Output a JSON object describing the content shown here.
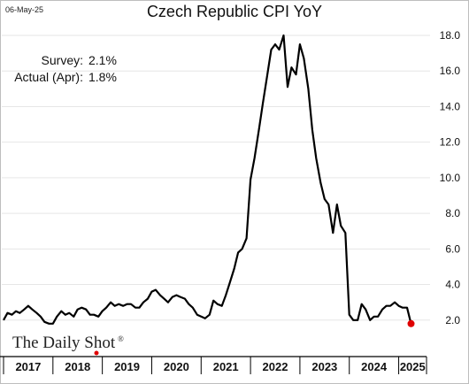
{
  "header": {
    "date": "06-May-25",
    "title": "Czech Republic CPI YoY"
  },
  "annotations": [
    {
      "label": "Survey:",
      "value": "2.1%"
    },
    {
      "label": "Actual (Apr):",
      "value": "1.8%"
    }
  ],
  "logo": {
    "text": "The Daily Shot",
    "mark": "®"
  },
  "colors": {
    "line": "#000000",
    "highlight": "#e00000",
    "grid": "#e6e6e6",
    "axis": "#000000"
  },
  "chart_data": {
    "type": "line",
    "title": "Czech Republic CPI YoY",
    "ylim": [
      0,
      18
    ],
    "yticks": [
      {
        "value": 2,
        "label": "2.0"
      },
      {
        "value": 4,
        "label": "4.0"
      },
      {
        "value": 6,
        "label": "6.0"
      },
      {
        "value": 8,
        "label": "8.0"
      },
      {
        "value": 10,
        "label": "10.0"
      },
      {
        "value": 12,
        "label": "12.0"
      },
      {
        "value": 14,
        "label": "14.0"
      },
      {
        "value": 16,
        "label": "16.0"
      },
      {
        "value": 18,
        "label": "18.0"
      }
    ],
    "xlim": [
      2017.0,
      2025.42
    ],
    "xticks": [
      "2017",
      "2018",
      "2019",
      "2020",
      "2021",
      "2022",
      "2023",
      "2024",
      "2025"
    ],
    "grid": true,
    "series": [
      {
        "x": [
          2017.0,
          2017.08,
          2017.17,
          2017.25,
          2017.33,
          2017.42,
          2017.5,
          2017.58,
          2017.67,
          2017.75,
          2017.83,
          2017.92,
          2018.0,
          2018.08,
          2018.17,
          2018.25,
          2018.33,
          2018.42,
          2018.5,
          2018.58,
          2018.67,
          2018.75,
          2018.83,
          2018.92,
          2019.0,
          2019.08,
          2019.17,
          2019.25,
          2019.33,
          2019.42,
          2019.5,
          2019.58,
          2019.67,
          2019.75,
          2019.83,
          2019.92,
          2020.0,
          2020.08,
          2020.17,
          2020.25,
          2020.33,
          2020.42,
          2020.5,
          2020.58,
          2020.67,
          2020.75,
          2020.83,
          2020.92,
          2021.0,
          2021.08,
          2021.17,
          2021.25,
          2021.33,
          2021.42,
          2021.5,
          2021.58,
          2021.67,
          2021.75,
          2021.83,
          2021.92,
          2022.0,
          2022.08,
          2022.17,
          2022.25,
          2022.33,
          2022.42,
          2022.5,
          2022.58,
          2022.67,
          2022.75,
          2022.83,
          2022.92,
          2023.0,
          2023.08,
          2023.17,
          2023.25,
          2023.33,
          2023.42,
          2023.5,
          2023.58,
          2023.67,
          2023.75,
          2023.83,
          2023.92,
          2024.0,
          2024.08,
          2024.17,
          2024.25,
          2024.33,
          2024.42,
          2024.5,
          2024.58,
          2024.67,
          2024.75,
          2024.83,
          2024.92,
          2025.0,
          2025.08,
          2025.17,
          2025.25
        ],
        "y": [
          2.0,
          2.4,
          2.3,
          2.5,
          2.4,
          2.6,
          2.8,
          2.6,
          2.4,
          2.2,
          1.9,
          1.8,
          1.8,
          2.2,
          2.5,
          2.3,
          2.4,
          2.2,
          2.6,
          2.7,
          2.6,
          2.3,
          2.3,
          2.2,
          2.5,
          2.7,
          3.0,
          2.8,
          2.9,
          2.8,
          2.9,
          2.9,
          2.7,
          2.7,
          3.0,
          3.2,
          3.6,
          3.7,
          3.4,
          3.2,
          3.0,
          3.3,
          3.4,
          3.3,
          3.2,
          2.9,
          2.7,
          2.3,
          2.2,
          2.1,
          2.3,
          3.1,
          2.9,
          2.8,
          3.4,
          4.1,
          4.9,
          5.8,
          6.0,
          6.6,
          9.9,
          11.1,
          12.7,
          14.2,
          15.6,
          17.2,
          17.5,
          17.2,
          18.0,
          15.1,
          16.2,
          15.8,
          17.5,
          16.7,
          15.0,
          12.7,
          11.1,
          9.7,
          8.8,
          8.5,
          6.9,
          8.5,
          7.3,
          6.9,
          2.3,
          2.0,
          2.0,
          2.9,
          2.6,
          2.0,
          2.2,
          2.2,
          2.6,
          2.8,
          2.8,
          3.0,
          2.8,
          2.7,
          2.7,
          1.8
        ]
      }
    ],
    "highlight": {
      "x": 2025.25,
      "y": 1.8
    }
  }
}
